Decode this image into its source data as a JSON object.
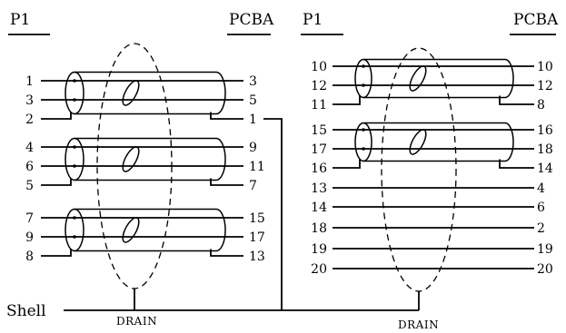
{
  "left": {
    "p1_label": "P1",
    "pcba_label": "PCBA",
    "drain_label": "DRAIN",
    "shell_label": "Shell",
    "groups": [
      {
        "pairs": [
          {
            "p1": "1",
            "pcba": "3"
          },
          {
            "p1": "3",
            "pcba": "5"
          }
        ],
        "drain": {
          "p1": "2",
          "pcba": "1"
        }
      },
      {
        "pairs": [
          {
            "p1": "4",
            "pcba": "9"
          },
          {
            "p1": "6",
            "pcba": "11"
          }
        ],
        "drain": {
          "p1": "5",
          "pcba": "7"
        }
      },
      {
        "pairs": [
          {
            "p1": "7",
            "pcba": "15"
          },
          {
            "p1": "9",
            "pcba": "17"
          }
        ],
        "drain": {
          "p1": "8",
          "pcba": "13"
        }
      }
    ]
  },
  "right": {
    "p1_label": "P1",
    "pcba_label": "PCBA",
    "drain_label": "DRAIN",
    "groups": [
      {
        "pairs": [
          {
            "p1": "10",
            "pcba": "10"
          },
          {
            "p1": "12",
            "pcba": "12"
          }
        ],
        "drain": {
          "p1": "11",
          "pcba": "8"
        }
      },
      {
        "pairs": [
          {
            "p1": "15",
            "pcba": "16"
          },
          {
            "p1": "17",
            "pcba": "18"
          }
        ],
        "drain": {
          "p1": "16",
          "pcba": "14"
        }
      }
    ],
    "singles": [
      {
        "p1": "13",
        "pcba": "4"
      },
      {
        "p1": "14",
        "pcba": "6"
      },
      {
        "p1": "18",
        "pcba": "2"
      },
      {
        "p1": "19",
        "pcba": "19"
      },
      {
        "p1": "20",
        "pcba": "20"
      }
    ]
  }
}
